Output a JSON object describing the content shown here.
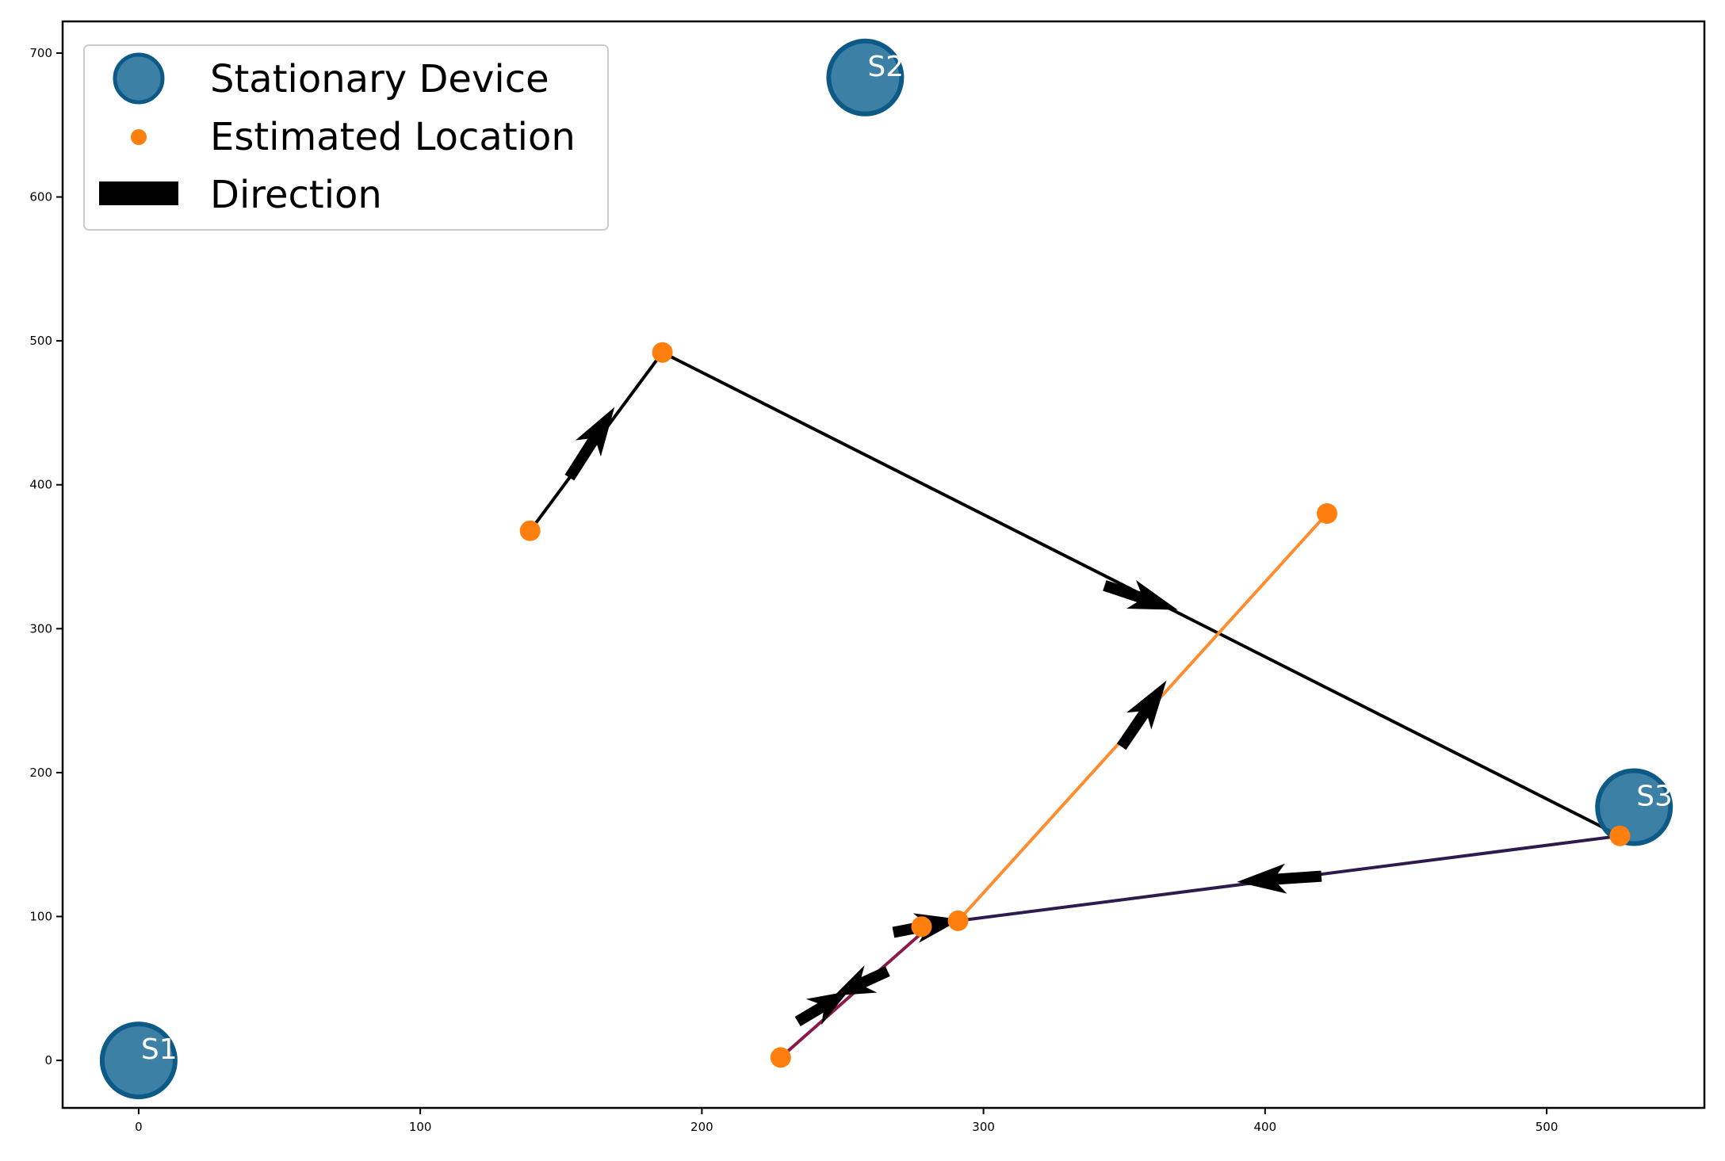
{
  "chart_data": {
    "type": "scatter",
    "title": "",
    "xlabel": "",
    "ylabel": "",
    "xlim": [
      -27,
      556
    ],
    "ylim": [
      -33,
      722
    ],
    "xticks": [
      0,
      100,
      200,
      300,
      400,
      500
    ],
    "yticks": [
      0,
      100,
      200,
      300,
      400,
      500,
      600,
      700
    ],
    "grid": false,
    "legend": {
      "placement": "top-left",
      "entries": [
        {
          "label": "Stationary Device",
          "marker": "large-circle",
          "color": "#1a6a96"
        },
        {
          "label": "Estimated Location",
          "marker": "small-circle",
          "color": "#ff7f0e"
        },
        {
          "label": "Direction",
          "marker": "rectangle",
          "color": "#000000"
        }
      ]
    },
    "stationary_devices": [
      {
        "label": "S1",
        "x": 0,
        "y": 0
      },
      {
        "label": "S2",
        "x": 258,
        "y": 683
      },
      {
        "label": "S3",
        "x": 531,
        "y": 176
      }
    ],
    "estimated_locations": [
      {
        "x": 139,
        "y": 368
      },
      {
        "x": 186,
        "y": 492
      },
      {
        "x": 526,
        "y": 156
      },
      {
        "x": 291,
        "y": 97
      },
      {
        "x": 278,
        "y": 93
      },
      {
        "x": 228,
        "y": 2
      },
      {
        "x": 422,
        "y": 380
      }
    ],
    "paths": [
      {
        "color": "#000000",
        "points": [
          [
            139,
            368
          ],
          [
            186,
            492
          ],
          [
            526,
            156
          ]
        ]
      },
      {
        "color": "#2d1b4e",
        "points": [
          [
            526,
            156
          ],
          [
            291,
            97
          ]
        ]
      },
      {
        "color": "#8b1a4a",
        "points": [
          [
            283,
            97
          ],
          [
            228,
            2
          ]
        ]
      },
      {
        "color": "#ff8c2e",
        "points": [
          [
            291,
            97
          ],
          [
            422,
            380
          ]
        ]
      }
    ],
    "direction_arrows": [
      {
        "from": [
          153,
          405
        ],
        "to": [
          169,
          454
        ]
      },
      {
        "from": [
          343,
          330
        ],
        "to": [
          369,
          313
        ]
      },
      {
        "from": [
          349,
          218
        ],
        "to": [
          365,
          264
        ]
      },
      {
        "from": [
          420,
          128
        ],
        "to": [
          390,
          124
        ]
      },
      {
        "from": [
          268,
          89
        ],
        "to": [
          292,
          98
        ]
      },
      {
        "from": [
          234,
          27
        ],
        "to": [
          252,
          48
        ]
      },
      {
        "from": [
          266,
          62
        ],
        "to": [
          247,
          45
        ]
      }
    ],
    "colors": {
      "station": "#1a6a96",
      "station_edge": "#0d5a87",
      "estimated": "#ff7f0e",
      "direction": "#000000"
    }
  }
}
